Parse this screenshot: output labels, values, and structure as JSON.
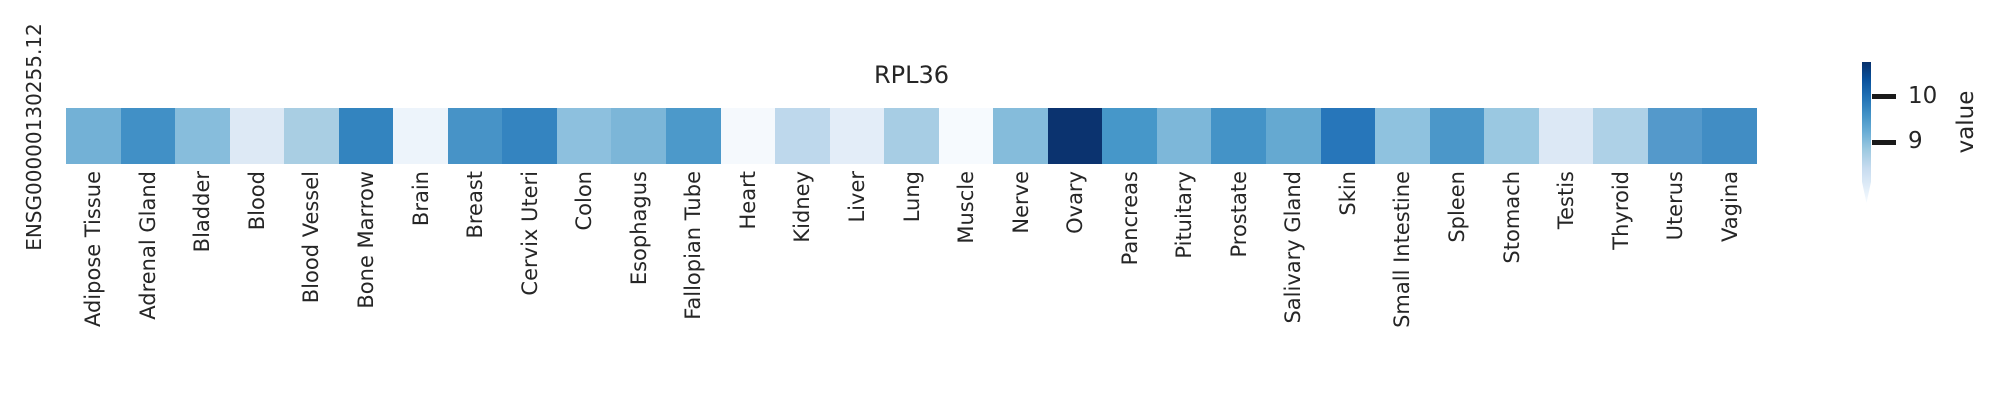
{
  "figure": {
    "title": "RPL36",
    "gene_id": "ENSG00000130255.12"
  },
  "colorbar": {
    "label": "value",
    "ticks": [
      "10",
      "9"
    ],
    "tick_values": [
      10,
      9
    ],
    "gradient_top_to_bottom": [
      "#08306b",
      "#08519c",
      "#2171b5",
      "#4292c6",
      "#6baed6",
      "#9ecae1",
      "#c6dbef",
      "#deebf7",
      "#f7fbff"
    ]
  },
  "chart_data": {
    "type": "heatmap",
    "title": "RPL36",
    "rows": [
      "ENSG00000130255.12"
    ],
    "colormap": "Blues",
    "legend_label": "value",
    "legend_position": "right",
    "colorbar_ticks": [
      10,
      9
    ],
    "value_range_estimate": [
      7.45,
      10.85
    ],
    "categories": [
      "Adipose Tissue",
      "Adrenal Gland",
      "Bladder",
      "Blood",
      "Blood Vessel",
      "Bone Marrow",
      "Brain",
      "Breast",
      "Cervix Uteri",
      "Colon",
      "Esophagus",
      "Fallopian Tube",
      "Heart",
      "Kidney",
      "Liver",
      "Lung",
      "Muscle",
      "Nerve",
      "Ovary",
      "Pancreas",
      "Pituitary",
      "Prostate",
      "Salivary Gland",
      "Skin",
      "Small Intestine",
      "Spleen",
      "Stomach",
      "Testis",
      "Thyroid",
      "Uterus",
      "Vagina"
    ],
    "values": [
      9.2,
      9.55,
      9.0,
      7.9,
      8.65,
      9.7,
      7.65,
      9.5,
      9.67,
      8.9,
      9.1,
      9.4,
      7.5,
      8.4,
      7.8,
      8.67,
      7.48,
      9.0,
      10.75,
      9.47,
      9.08,
      9.52,
      9.2,
      9.9,
      8.9,
      9.46,
      8.75,
      7.9,
      8.6,
      9.38,
      9.6
    ],
    "cell_colors": [
      "#73b1d6",
      "#4190c6",
      "#87bddc",
      "#dde9f5",
      "#a9cee3",
      "#3384bf",
      "#edf4fb",
      "#4793c7",
      "#3484c0",
      "#8dc0de",
      "#7cb6d8",
      "#4c99ca",
      "#f5f9fd",
      "#bed8ec",
      "#e3edf8",
      "#a7cde4",
      "#f6fafe",
      "#85bcdb",
      "#0b336f",
      "#4697c9",
      "#7db7d9",
      "#4493c7",
      "#65a9d1",
      "#2776ba",
      "#8fc2df",
      "#4b97c9",
      "#9ac8e1",
      "#dce8f5",
      "#aed1e7",
      "#5499cb",
      "#418dc4"
    ]
  }
}
